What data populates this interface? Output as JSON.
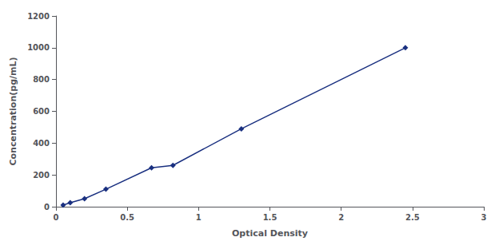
{
  "chart_data": {
    "type": "line",
    "xlabel": "Optical Density",
    "ylabel": "Concentration(pg/mL)",
    "x": [
      0.05,
      0.1,
      0.2,
      0.35,
      0.67,
      0.82,
      1.3,
      2.45
    ],
    "values": [
      10,
      25,
      50,
      110,
      245,
      260,
      490,
      1000
    ],
    "color": "#1A3080",
    "marker": "diamond",
    "line_style": "solid",
    "xlim": [
      0,
      3
    ],
    "ylim": [
      0,
      1200
    ],
    "xticks": [
      0,
      0.5,
      1,
      1.5,
      2,
      2.5,
      3
    ],
    "yticks": [
      0,
      200,
      400,
      600,
      800,
      1000,
      1200
    ],
    "grid": false
  }
}
